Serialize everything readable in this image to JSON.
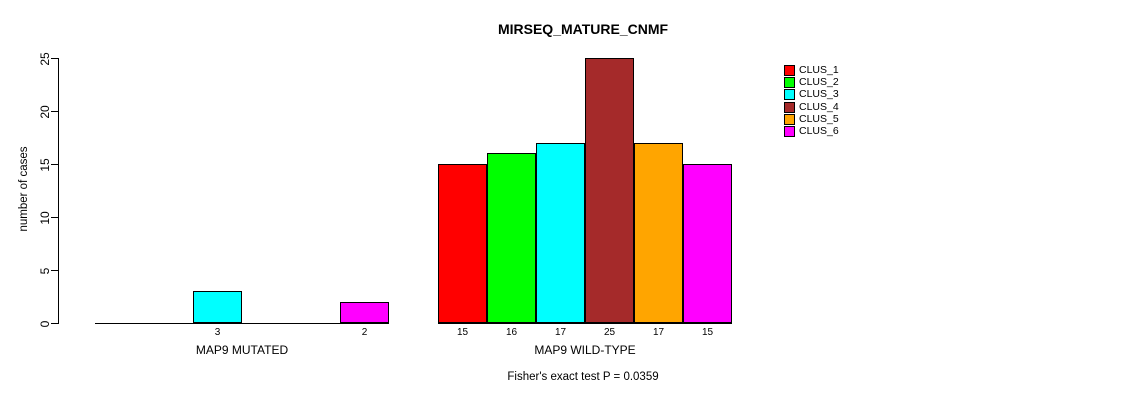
{
  "chart_data": {
    "type": "bar",
    "title": "MIRSEQ_MATURE_CNMF",
    "ylabel": "number of cases",
    "xlabel": "",
    "annotation": "Fisher's exact test P = 0.0359",
    "ylim": [
      0,
      25
    ],
    "yticks": [
      0,
      5,
      10,
      15,
      20,
      25
    ],
    "categories": [
      "MAP9 MUTATED",
      "MAP9 WILD-TYPE"
    ],
    "series": [
      {
        "name": "CLUS_1",
        "color": "#FF0000",
        "values": [
          0,
          15
        ]
      },
      {
        "name": "CLUS_2",
        "color": "#00FF00",
        "values": [
          0,
          16
        ]
      },
      {
        "name": "CLUS_3",
        "color": "#00FFFF",
        "values": [
          3,
          17
        ]
      },
      {
        "name": "CLUS_4",
        "color": "#A52A2A",
        "values": [
          0,
          25
        ]
      },
      {
        "name": "CLUS_5",
        "color": "#FFA500",
        "values": [
          0,
          17
        ]
      },
      {
        "name": "CLUS_6",
        "color": "#FF00FF",
        "values": [
          2,
          15
        ]
      }
    ],
    "bar_labels": "value shown under each bar when value > 0",
    "legend_position": "right",
    "grid": false,
    "background": "#FFFFFF",
    "axis_color": "#000000"
  }
}
